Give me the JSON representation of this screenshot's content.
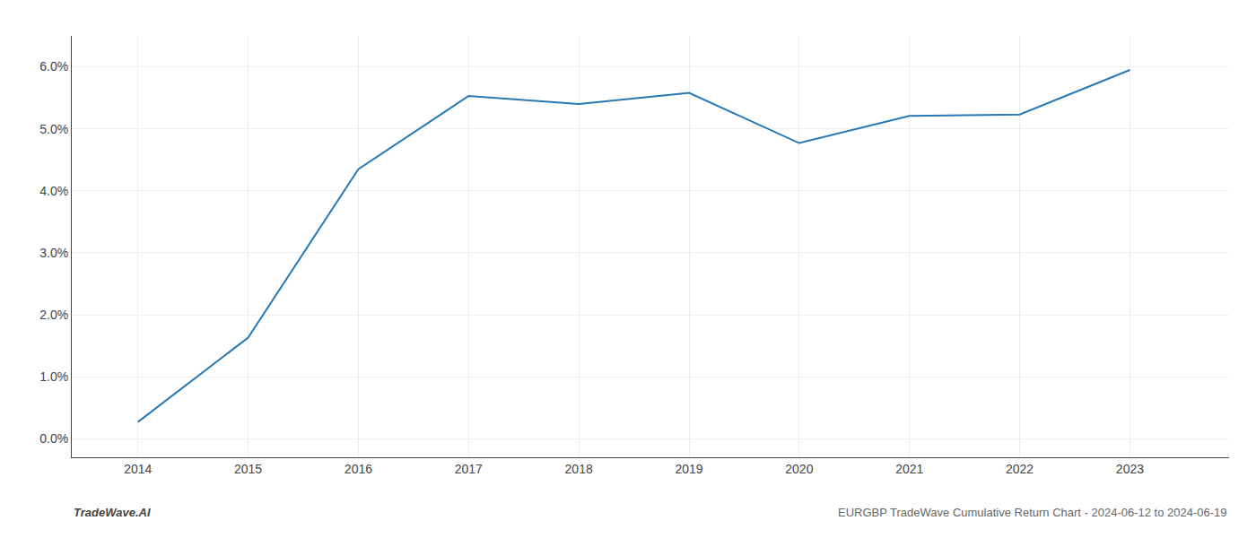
{
  "chart_data": {
    "type": "line",
    "title": "EURGBP TradeWave Cumulative Return Chart - 2024-06-12 to 2024-06-19",
    "annotations": [
      "TradeWave.AI"
    ],
    "x": [
      2014,
      2015,
      2016,
      2017,
      2018,
      2019,
      2020,
      2021,
      2022,
      2023
    ],
    "values": [
      0.0027,
      0.0163,
      0.0435,
      0.0553,
      0.054,
      0.0558,
      0.0477,
      0.0521,
      0.0523,
      0.0595
    ],
    "color": "#2878b5",
    "xlim": [
      2013.4,
      2023.9
    ],
    "xticks": [
      2014,
      2015,
      2016,
      2017,
      2018,
      2019,
      2020,
      2021,
      2022,
      2023
    ],
    "ylim": [
      -0.003,
      0.065
    ],
    "yticks": [
      {
        "value": 0.0,
        "label": "0.0%"
      },
      {
        "value": 0.01,
        "label": "1.0%"
      },
      {
        "value": 0.02,
        "label": "2.0%"
      },
      {
        "value": 0.03,
        "label": "3.0%"
      },
      {
        "value": 0.04,
        "label": "4.0%"
      },
      {
        "value": 0.05,
        "label": "5.0%"
      },
      {
        "value": 0.06,
        "label": "6.0%"
      }
    ],
    "grid": true
  }
}
